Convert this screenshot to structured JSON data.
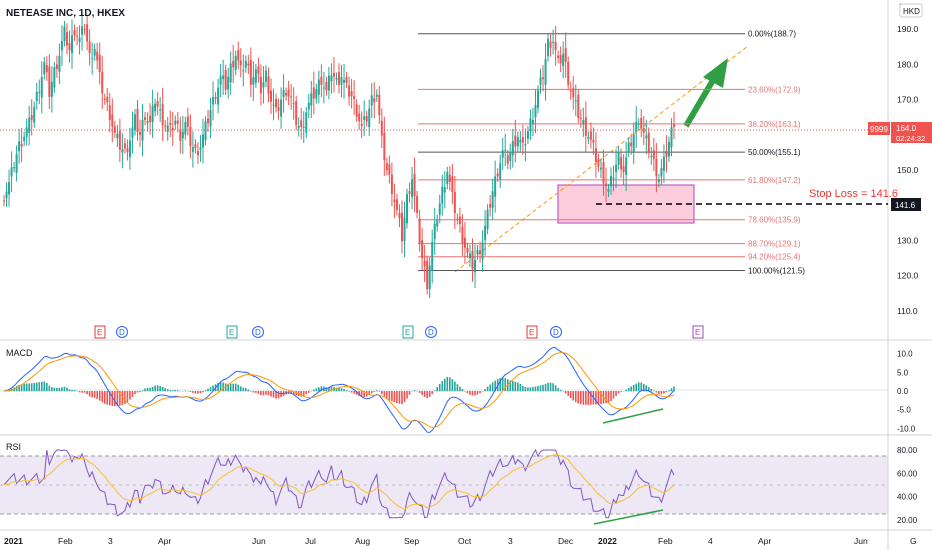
{
  "header": {
    "symbol": "NETEASE INC, 1D, HKEX",
    "currency": "HKD",
    "corner_text": "2("
  },
  "colors": {
    "up": "#26a69a",
    "down": "#ef5350",
    "macd_line": "#2962ff",
    "signal_line": "#ff9800",
    "rsi_line": "#7e57c2",
    "rsi_band": "#ede7f6",
    "fib_black": "#555555",
    "fib_red": "#e57373",
    "trend": "#ff9800",
    "arrow": "#2ea043",
    "stop_zone": "#f8bbd0",
    "stop_border": "#ab47bc",
    "stop_text": "#e53935",
    "earnings_red": "#e53935",
    "earnings_green": "#26a69a",
    "earnings_purple": "#ab47bc",
    "dividend": "#2962ff"
  },
  "price_axis": {
    "min": 108,
    "max": 196,
    "ticks": [
      110.0,
      120.0,
      130.0,
      140.0,
      150.0,
      160.0,
      170.0,
      180.0,
      190.0
    ]
  },
  "price_tags": {
    "last": {
      "ticker": "9999",
      "price": "164.0",
      "countdown": "02:24:32",
      "value": 164.0
    },
    "stop": {
      "label": "141.6",
      "value": 141.6
    }
  },
  "x_axis": {
    "labels": [
      "2021",
      "Feb",
      "3",
      "Apr",
      "Jun",
      "Jul",
      "Aug",
      "Sep",
      "Oct",
      "3",
      "Dec",
      "2022",
      "Feb",
      "4",
      "Apr",
      "Jun",
      "G"
    ]
  },
  "fib_levels": [
    {
      "label": "0.00%(188.7)",
      "value": 188.7,
      "style": "black"
    },
    {
      "label": "23.60%(172.9)",
      "value": 172.9,
      "style": "red"
    },
    {
      "label": "38.20%(163.1)",
      "value": 163.1,
      "style": "red"
    },
    {
      "label": "50.00%(155.1)",
      "value": 155.1,
      "style": "black"
    },
    {
      "label": "61.80%(147.2)",
      "value": 147.2,
      "style": "red"
    },
    {
      "label": "78.60%(135.9)",
      "value": 135.9,
      "style": "red"
    },
    {
      "label": "88.70%(129.1)",
      "value": 129.1,
      "style": "red"
    },
    {
      "label": "94.20%(125.4)",
      "value": 125.4,
      "style": "red"
    },
    {
      "label": "100.00%(121.5)",
      "value": 121.5,
      "style": "black"
    }
  ],
  "stop_loss": {
    "label": "Stop Loss = 141.6",
    "value": 141.6,
    "zone_top": 147.2,
    "zone_bottom": 135.9
  },
  "events": [
    {
      "type": "E",
      "color": "earnings_red"
    },
    {
      "type": "D",
      "color": "dividend"
    },
    {
      "type": "E",
      "color": "earnings_green"
    },
    {
      "type": "D",
      "color": "dividend"
    },
    {
      "type": "E",
      "color": "earnings_green"
    },
    {
      "type": "D",
      "color": "dividend"
    },
    {
      "type": "E",
      "color": "earnings_red"
    },
    {
      "type": "D",
      "color": "dividend"
    },
    {
      "type": "E",
      "color": "earnings_purple"
    }
  ],
  "macd": {
    "title": "MACD",
    "ticks": [
      "10.0",
      "5.0",
      "0.0",
      "-5.0",
      "-10.0"
    ],
    "range": [
      -11,
      11
    ]
  },
  "rsi": {
    "title": "RSI",
    "ticks": [
      "80.00",
      "60.00",
      "40.00",
      "20.00"
    ],
    "range": [
      14,
      86
    ],
    "upper": 70,
    "lower": 30,
    "mid": 50
  },
  "chart_data": {
    "type": "candlestick",
    "symbol": "NETEASE INC, 1D, HKEX",
    "x_labels": [
      "2021",
      "Feb",
      "3",
      "Apr",
      "Jun",
      "Jul",
      "Aug",
      "Sep",
      "Oct",
      "3",
      "Dec",
      "2022",
      "Feb",
      "4",
      "Apr",
      "Jun"
    ],
    "close_path": [
      [
        0,
        143
      ],
      [
        2,
        146
      ],
      [
        4,
        152
      ],
      [
        6,
        157
      ],
      [
        8,
        160
      ],
      [
        10,
        163
      ],
      [
        12,
        168
      ],
      [
        14,
        174
      ],
      [
        16,
        180
      ],
      [
        18,
        172
      ],
      [
        20,
        178
      ],
      [
        22,
        183
      ],
      [
        24,
        189
      ],
      [
        26,
        184
      ],
      [
        28,
        190
      ],
      [
        30,
        187
      ],
      [
        32,
        191
      ],
      [
        34,
        182
      ],
      [
        36,
        185
      ],
      [
        38,
        176
      ],
      [
        40,
        170
      ],
      [
        42,
        166
      ],
      [
        44,
        160
      ],
      [
        46,
        157
      ],
      [
        48,
        155
      ],
      [
        50,
        159
      ],
      [
        52,
        164
      ],
      [
        54,
        160
      ],
      [
        56,
        166
      ],
      [
        58,
        163
      ],
      [
        60,
        170
      ],
      [
        62,
        166
      ],
      [
        64,
        163
      ],
      [
        66,
        161
      ],
      [
        68,
        164
      ],
      [
        70,
        160
      ],
      [
        72,
        163
      ],
      [
        74,
        158
      ],
      [
        76,
        155
      ],
      [
        78,
        157
      ],
      [
        80,
        162
      ],
      [
        82,
        167
      ],
      [
        84,
        172
      ],
      [
        86,
        176
      ],
      [
        88,
        174
      ],
      [
        90,
        179
      ],
      [
        92,
        183
      ],
      [
        94,
        178
      ],
      [
        96,
        181
      ],
      [
        98,
        176
      ],
      [
        100,
        178
      ],
      [
        102,
        173
      ],
      [
        104,
        177
      ],
      [
        106,
        170
      ],
      [
        108,
        166
      ],
      [
        110,
        170
      ],
      [
        112,
        173
      ],
      [
        114,
        170
      ],
      [
        116,
        164
      ],
      [
        118,
        161
      ],
      [
        120,
        167
      ],
      [
        122,
        170
      ],
      [
        124,
        173
      ],
      [
        126,
        176
      ],
      [
        128,
        172
      ],
      [
        130,
        178
      ],
      [
        132,
        175
      ],
      [
        134,
        177
      ],
      [
        136,
        173
      ],
      [
        138,
        171
      ],
      [
        140,
        167
      ],
      [
        142,
        162
      ],
      [
        144,
        165
      ],
      [
        146,
        170
      ],
      [
        148,
        172
      ],
      [
        150,
        158
      ],
      [
        152,
        150
      ],
      [
        154,
        145
      ],
      [
        156,
        138
      ],
      [
        158,
        131
      ],
      [
        160,
        142
      ],
      [
        162,
        148
      ],
      [
        164,
        136
      ],
      [
        166,
        125
      ],
      [
        168,
        118
      ],
      [
        170,
        129
      ],
      [
        172,
        137
      ],
      [
        174,
        144
      ],
      [
        176,
        150
      ],
      [
        178,
        142
      ],
      [
        180,
        136
      ],
      [
        182,
        131
      ],
      [
        184,
        126
      ],
      [
        186,
        123
      ],
      [
        188,
        126
      ],
      [
        190,
        130
      ],
      [
        192,
        137
      ],
      [
        194,
        144
      ],
      [
        196,
        150
      ],
      [
        198,
        155
      ],
      [
        200,
        153
      ],
      [
        202,
        157
      ],
      [
        204,
        160
      ],
      [
        206,
        156
      ],
      [
        208,
        161
      ],
      [
        210,
        166
      ],
      [
        212,
        172
      ],
      [
        214,
        177
      ],
      [
        216,
        186
      ],
      [
        218,
        187
      ],
      [
        220,
        180
      ],
      [
        222,
        183
      ],
      [
        224,
        176
      ],
      [
        226,
        170
      ],
      [
        228,
        166
      ],
      [
        230,
        163
      ],
      [
        232,
        160
      ],
      [
        234,
        156
      ],
      [
        236,
        151
      ],
      [
        238,
        148
      ],
      [
        240,
        144
      ],
      [
        242,
        149
      ],
      [
        244,
        154
      ],
      [
        246,
        150
      ],
      [
        248,
        156
      ],
      [
        250,
        160
      ],
      [
        252,
        165
      ],
      [
        254,
        160
      ],
      [
        256,
        156
      ],
      [
        258,
        152
      ],
      [
        260,
        148
      ],
      [
        262,
        152
      ],
      [
        264,
        158
      ],
      [
        266,
        164
      ]
    ],
    "fib_levels_pct": [
      0.0,
      23.6,
      38.2,
      50.0,
      61.8,
      78.6,
      88.7,
      94.2,
      100.0
    ],
    "fib_levels_price": [
      188.7,
      172.9,
      163.1,
      155.1,
      147.2,
      135.9,
      129.1,
      125.4,
      121.5
    ],
    "stop_loss": 141.6,
    "last_price": 164.0,
    "y_range": [
      108,
      196
    ],
    "macd_range": [
      -11,
      11
    ],
    "rsi_range": [
      14,
      86
    ],
    "rsi_bands": [
      30,
      50,
      70
    ]
  }
}
